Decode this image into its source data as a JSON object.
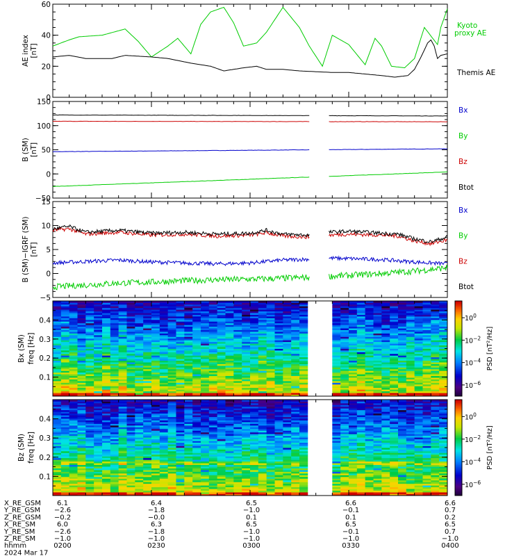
{
  "page": {
    "title": ""
  },
  "chart_data": [
    {
      "type": "line",
      "ylabel": "AE index",
      "yunit": "[nT]",
      "ylim": [
        0,
        60
      ],
      "yticks": [
        0,
        20,
        40,
        60
      ],
      "xlim": [
        0,
        120
      ],
      "x_unit": "minutes after 0200 UT",
      "series": [
        {
          "name": "Kyoto proxy AE",
          "color": "#00cc00",
          "x": [
            0,
            5,
            8,
            15,
            22,
            26,
            30,
            35,
            38,
            42,
            45,
            48,
            52,
            55,
            58,
            62,
            65,
            70,
            75,
            78,
            82,
            85,
            90,
            95,
            98,
            100,
            103,
            107,
            110,
            113,
            117,
            118,
            120
          ],
          "y": [
            33,
            37,
            39,
            40,
            44,
            36,
            26,
            33,
            38,
            28,
            47,
            55,
            58,
            48,
            33,
            35,
            42,
            58,
            45,
            33,
            20,
            40,
            34,
            21,
            38,
            33,
            20,
            19,
            25,
            45,
            34,
            45,
            57
          ]
        },
        {
          "name": "Themis AE",
          "color": "#000000",
          "x": [
            0,
            5,
            10,
            18,
            22,
            30,
            35,
            42,
            48,
            52,
            58,
            62,
            65,
            70,
            75,
            85,
            90,
            95,
            100,
            104,
            108,
            110,
            112,
            114,
            115,
            116,
            117,
            118,
            120
          ],
          "y": [
            26,
            27,
            25,
            25,
            27,
            26,
            25,
            22,
            20,
            17,
            19,
            20,
            18,
            18,
            17,
            16,
            16,
            15,
            14,
            13,
            14,
            18,
            26,
            35,
            37,
            33,
            25,
            27,
            28
          ]
        }
      ]
    },
    {
      "type": "line",
      "ylabel": "B (SM)",
      "yunit": "[nT]",
      "ylim": [
        -50,
        150
      ],
      "yticks": [
        -50,
        0,
        50,
        100,
        150
      ],
      "xlim": [
        0,
        120
      ],
      "gap": [
        78,
        84
      ],
      "series": [
        {
          "name": "Bx",
          "color": "#0000cc",
          "x": [
            0,
            120
          ],
          "y": [
            46,
            52
          ]
        },
        {
          "name": "By",
          "color": "#00cc00",
          "x": [
            0,
            120
          ],
          "y": [
            -26,
            4
          ]
        },
        {
          "name": "Bz",
          "color": "#cc0000",
          "x": [
            0,
            120
          ],
          "y": [
            109,
            108
          ]
        },
        {
          "name": "Btot",
          "color": "#000000",
          "x": [
            0,
            120
          ],
          "y": [
            122,
            120
          ]
        }
      ]
    },
    {
      "type": "line",
      "ylabel": "B (SM)−IGRF (SM)",
      "yunit": "[nT]",
      "ylim": [
        -5,
        15
      ],
      "yticks": [
        -5,
        0,
        5,
        10,
        15
      ],
      "xlim": [
        0,
        120
      ],
      "gap": [
        78,
        84
      ],
      "series": [
        {
          "name": "Bx",
          "color": "#0000cc",
          "x": [
            0,
            10,
            20,
            30,
            40,
            50,
            60,
            70,
            78,
            84,
            90,
            100,
            110,
            120
          ],
          "y": [
            2.2,
            2.5,
            2.8,
            2.4,
            2.2,
            2.0,
            2.2,
            2.8,
            3.0,
            3.2,
            3.1,
            2.9,
            2.4,
            2.0
          ]
        },
        {
          "name": "By",
          "color": "#00cc00",
          "x": [
            0,
            10,
            20,
            30,
            40,
            50,
            60,
            70,
            78,
            84,
            90,
            100,
            110,
            120
          ],
          "y": [
            -2.8,
            -2.4,
            -2.0,
            -1.8,
            -1.5,
            -1.3,
            -1.2,
            -1.0,
            -0.8,
            -0.6,
            -0.4,
            0.0,
            0.5,
            1.2
          ]
        },
        {
          "name": "Bz",
          "color": "#cc0000",
          "x": [
            0,
            5,
            10,
            20,
            30,
            40,
            50,
            60,
            65,
            70,
            78,
            84,
            90,
            100,
            105,
            110,
            115,
            120
          ],
          "y": [
            9.0,
            9.3,
            8.2,
            8.6,
            8.0,
            8.2,
            7.8,
            8.0,
            8.5,
            7.8,
            7.6,
            8.0,
            8.2,
            8.0,
            7.8,
            6.8,
            6.2,
            7.0
          ]
        },
        {
          "name": "Btot",
          "color": "#000000",
          "x": [
            0,
            5,
            10,
            20,
            30,
            40,
            50,
            60,
            65,
            70,
            78,
            84,
            90,
            100,
            105,
            110,
            115,
            120
          ],
          "y": [
            9.3,
            9.8,
            8.6,
            9.0,
            8.4,
            8.6,
            8.2,
            8.4,
            9.0,
            8.2,
            8.0,
            8.6,
            8.8,
            8.4,
            8.2,
            7.2,
            6.6,
            7.6
          ]
        }
      ]
    },
    {
      "type": "heatmap",
      "ylabel": "Bx (SM)",
      "ylabel2": "freq",
      "yunit": "[Hz]",
      "ylim": [
        0,
        0.5
      ],
      "yticks": [
        0.1,
        0.2,
        0.3,
        0.4
      ],
      "xlim": [
        0,
        120
      ],
      "gap": [
        78,
        84
      ],
      "colorbar": {
        "label": "PSD",
        "unit": "[nT^2/Hz]",
        "log_range": [
          -7,
          1.5
        ],
        "ticks": [
          0,
          -2,
          -4,
          -6
        ],
        "tick_labels": [
          "10^0",
          "10^-2",
          "10^-4",
          "10^-6"
        ]
      }
    },
    {
      "type": "heatmap",
      "ylabel": "Bz (SM)",
      "ylabel2": "freq",
      "yunit": "[Hz]",
      "ylim": [
        0,
        0.5
      ],
      "yticks": [
        0.1,
        0.2,
        0.3,
        0.4
      ],
      "xlim": [
        0,
        120
      ],
      "gap": [
        78,
        84
      ],
      "colorbar": {
        "label": "PSD",
        "unit": "[nT^2/Hz]",
        "log_range": [
          -7,
          1.5
        ],
        "ticks": [
          0,
          -2,
          -4,
          -6
        ],
        "tick_labels": [
          "10^0",
          "10^-2",
          "10^-4",
          "10^-6"
        ]
      }
    }
  ],
  "x_axis": {
    "rows": [
      {
        "label": "X_RE_GSM",
        "values": [
          "6.1",
          "6.4",
          "6.5",
          "6.6",
          "6.6"
        ]
      },
      {
        "label": "Y_RE_GSM",
        "values": [
          "−2.6",
          "−1.8",
          "−1.0",
          "−0.1",
          "0.7"
        ]
      },
      {
        "label": "Z_RE_GSM",
        "values": [
          "−0.2",
          "−0.0",
          "0.1",
          "0.1",
          "0.2"
        ]
      },
      {
        "label": "X_RE_SM",
        "values": [
          "6.0",
          "6.3",
          "6.5",
          "6.5",
          "6.5"
        ]
      },
      {
        "label": "Y_RE_SM",
        "values": [
          "−2.6",
          "−1.8",
          "−1.0",
          "−0.1",
          "0.7"
        ]
      },
      {
        "label": "Z_RE_SM",
        "values": [
          "−1.0",
          "−1.0",
          "−1.0",
          "−1.0",
          "−1.0"
        ]
      },
      {
        "label": "hhmm",
        "values": [
          "0200",
          "0230",
          "0300",
          "0330",
          "0400"
        ]
      }
    ],
    "date": "2024 Mar 17"
  }
}
